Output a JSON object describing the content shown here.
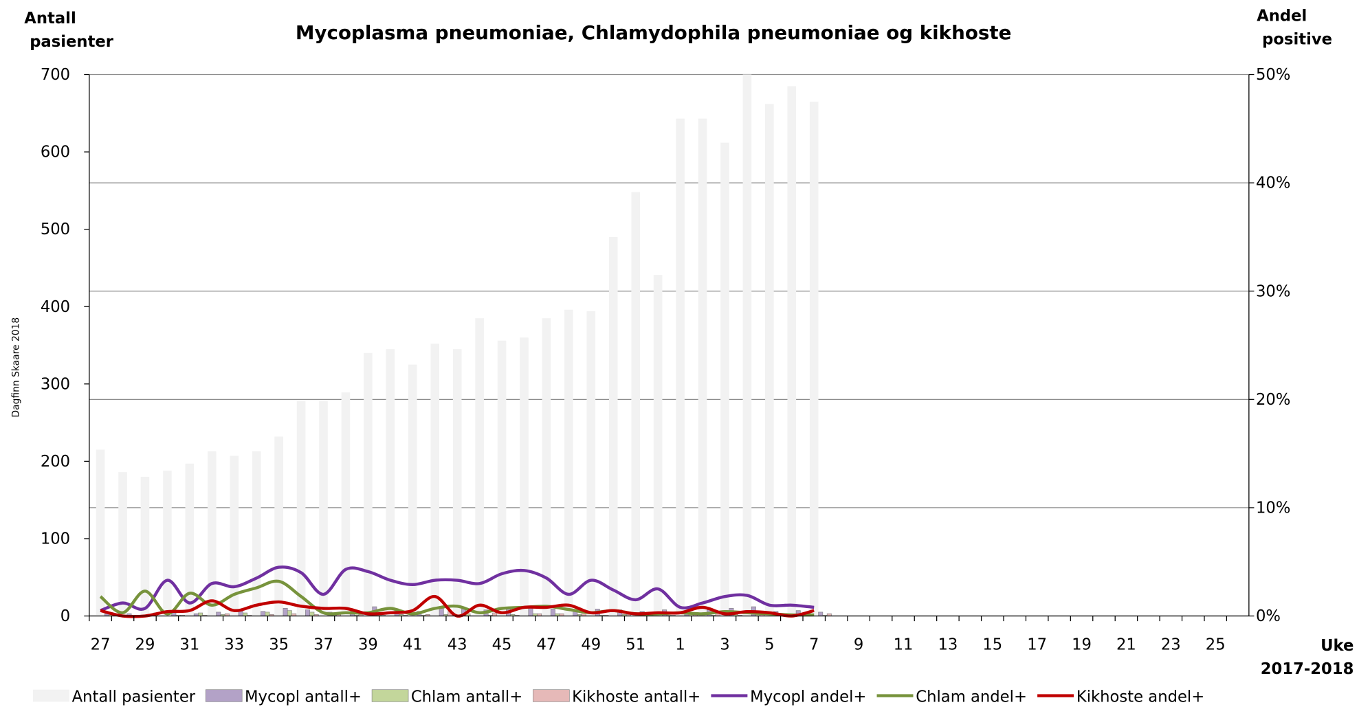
{
  "chart_data": {
    "type": "bar",
    "title": "Mycoplasma pneumoniae, Chlamydophila pneumoniae og kikhoste",
    "y_label": "Antall pasienter",
    "y2_label": "Andel positive",
    "x_label": "Uke 2017-2018",
    "watermark": "Dagfinn Skaare 2018",
    "categories": [
      "27",
      null,
      "29",
      null,
      "31",
      null,
      "33",
      null,
      "35",
      null,
      "37",
      null,
      "39",
      null,
      "41",
      null,
      "43",
      null,
      "45",
      null,
      "47",
      null,
      "49",
      null,
      "51",
      null,
      "1",
      null,
      "3",
      null,
      "5",
      null,
      "7",
      null,
      "9",
      null,
      "11",
      null,
      "13",
      null,
      "15",
      null,
      "17",
      null,
      "19",
      null,
      "21",
      null,
      "23",
      null,
      "25",
      null
    ],
    "ylim": [
      0,
      700
    ],
    "yticks": [
      0,
      100,
      200,
      300,
      400,
      500,
      600,
      700
    ],
    "y2lim": [
      0,
      50
    ],
    "y2ticks": [
      {
        "value": 0,
        "label": "0%"
      },
      {
        "value": 10,
        "label": "10%"
      },
      {
        "value": 20,
        "label": "20%"
      },
      {
        "value": 30,
        "label": "30%"
      },
      {
        "value": 40,
        "label": "40%"
      },
      {
        "value": 50,
        "label": "50%"
      }
    ],
    "grid": true,
    "legend": "bottom",
    "series": [
      {
        "name": "Antall pasienter",
        "type": "bar",
        "color": "#f2f2f2",
        "values": [
          215,
          186,
          180,
          188,
          197,
          213,
          207,
          213,
          232,
          278,
          278,
          289,
          340,
          345,
          325,
          352,
          345,
          385,
          356,
          360,
          385,
          396,
          394,
          490,
          548,
          441,
          643,
          643,
          612,
          700,
          662,
          685,
          665,
          null,
          null,
          null,
          null,
          null,
          null,
          null,
          null,
          null,
          null,
          null,
          null,
          null,
          null,
          null,
          null,
          null,
          null,
          null
        ]
      },
      {
        "name": "Mycopl antall+",
        "type": "bar",
        "color": "#b3a2c7",
        "values": [
          3,
          3,
          2,
          5,
          3,
          5,
          6,
          6,
          10,
          8,
          5,
          6,
          12,
          8,
          6,
          10,
          9,
          8,
          9,
          10,
          9,
          6,
          9,
          8,
          6,
          8,
          6,
          8,
          10,
          12,
          6,
          7,
          5,
          null,
          null,
          null,
          null,
          null,
          null,
          null,
          null,
          null,
          null,
          null,
          null,
          null,
          null,
          null,
          null,
          null,
          null,
          null
        ]
      },
      {
        "name": "Chlam antall+",
        "type": "bar",
        "color": "#c3d69b",
        "values": [
          4,
          1,
          4,
          1,
          4,
          2,
          4,
          5,
          7,
          5,
          1,
          1,
          1,
          2,
          1,
          2,
          3,
          1,
          2,
          3,
          3,
          2,
          1,
          2,
          1,
          1,
          2,
          1,
          2,
          2,
          1,
          1,
          1,
          null,
          null,
          null,
          null,
          null,
          null,
          null,
          null,
          null,
          null,
          null,
          null,
          null,
          null,
          null,
          null,
          null,
          null,
          null
        ]
      },
      {
        "name": "Kikhoste antall+",
        "type": "bar",
        "color": "#e6b9b8",
        "values": [
          1,
          0,
          0,
          1,
          1,
          3,
          1,
          2,
          3,
          2,
          2,
          2,
          1,
          1,
          2,
          6,
          0,
          4,
          1,
          3,
          3,
          4,
          1,
          2,
          1,
          1,
          2,
          5,
          1,
          3,
          2,
          0,
          3,
          null,
          null,
          null,
          null,
          null,
          null,
          null,
          null,
          null,
          null,
          null,
          null,
          null,
          null,
          null,
          null,
          null,
          null,
          null
        ]
      },
      {
        "name": "Mycopl andel+",
        "type": "line",
        "axis": "y2",
        "color": "#7030a0",
        "values": [
          0.5,
          1.2,
          0.7,
          3.3,
          1.2,
          3.0,
          2.7,
          3.5,
          4.5,
          4.0,
          2.0,
          4.3,
          4.1,
          3.3,
          2.9,
          3.3,
          3.3,
          3.0,
          3.9,
          4.2,
          3.5,
          2.0,
          3.3,
          2.4,
          1.5,
          2.5,
          0.8,
          1.2,
          1.8,
          1.9,
          1.0,
          1.0,
          0.8,
          null,
          null,
          null,
          null,
          null,
          null,
          null,
          null,
          null,
          null,
          null,
          null,
          null,
          null,
          null,
          null,
          null,
          null,
          null
        ]
      },
      {
        "name": "Chlam andel+",
        "type": "line",
        "axis": "y2",
        "color": "#77933c",
        "values": [
          1.8,
          0.3,
          2.3,
          0.2,
          2.1,
          1.0,
          2.0,
          2.6,
          3.2,
          1.8,
          0.3,
          0.3,
          0.3,
          0.7,
          0.2,
          0.7,
          0.9,
          0.3,
          0.7,
          0.8,
          0.9,
          0.6,
          0.3,
          0.5,
          0.2,
          0.2,
          0.3,
          0.2,
          0.4,
          0.3,
          0.2,
          0.1,
          0.1,
          null,
          null,
          null,
          null,
          null,
          null,
          null,
          null,
          null,
          null,
          null,
          null,
          null,
          null,
          null,
          null,
          null,
          null,
          null
        ]
      },
      {
        "name": "Kikhoste andel+",
        "type": "line",
        "axis": "y2",
        "color": "#c00000",
        "values": [
          0.5,
          0,
          0,
          0.4,
          0.5,
          1.4,
          0.5,
          1.0,
          1.3,
          0.9,
          0.7,
          0.7,
          0.2,
          0.3,
          0.5,
          1.8,
          0,
          1.0,
          0.3,
          0.8,
          0.8,
          1.0,
          0.3,
          0.5,
          0.2,
          0.3,
          0.3,
          0.8,
          0.2,
          0.4,
          0.3,
          0,
          0.5,
          null,
          null,
          null,
          null,
          null,
          null,
          null,
          null,
          null,
          null,
          null,
          null,
          null,
          null,
          null,
          null,
          null,
          null,
          null
        ]
      }
    ]
  }
}
